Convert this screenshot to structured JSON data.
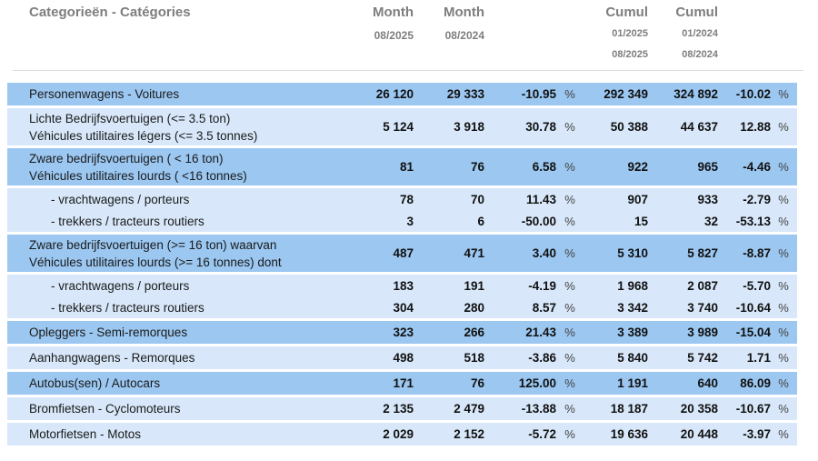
{
  "header": {
    "category": "Categorieën - Catégories",
    "month_current": {
      "title": "Month",
      "date": "08/2025"
    },
    "month_previous": {
      "title": "Month",
      "date": "08/2024"
    },
    "cumul_current": {
      "title": "Cumul",
      "date_from": "01/2025",
      "date_to": "08/2025"
    },
    "cumul_previous": {
      "title": "Cumul",
      "date_from": "01/2024",
      "date_to": "08/2024"
    }
  },
  "percent_sign": "%",
  "colors": {
    "row_medium": "#9BC7F1",
    "row_light": "#D8E8FA",
    "header_text": "#7E7E7E",
    "divider": "#DCDCDC"
  },
  "table": {
    "rows": [
      {
        "label": "Personenwagens - Voitures",
        "shade": "medium",
        "m1": "26 120",
        "m2": "29 333",
        "pct1": "-10.95",
        "cum1": "292 349",
        "cum2": "324 892",
        "pct2": "-10.02"
      },
      {
        "label": "Lichte Bedrijfsvoertuigen (<= 3.5 ton)",
        "label2": "Véhicules utilitaires légers (<= 3.5 tonnes)",
        "shade": "light",
        "m1": "5 124",
        "m2": "3 918",
        "pct1": "30.78",
        "cum1": "50 388",
        "cum2": "44 637",
        "pct2": "12.88"
      },
      {
        "label": "Zware bedrijfsvoertuigen ( < 16 ton)",
        "label2": "Véhicules utilitaires lourds ( <16 tonnes)",
        "shade": "medium",
        "m1": "81",
        "m2": "76",
        "pct1": "6.58",
        "cum1": "922",
        "cum2": "965",
        "pct2": "-4.46"
      },
      {
        "label": "- vrachtwagens / porteurs",
        "shade": "light",
        "indent": true,
        "m1": "78",
        "m2": "70",
        "pct1": "11.43",
        "cum1": "907",
        "cum2": "933",
        "pct2": "-2.79"
      },
      {
        "label": "- trekkers / tracteurs routiers",
        "shade": "light",
        "indent": true,
        "paired": true,
        "m1": "3",
        "m2": "6",
        "pct1": "-50.00",
        "cum1": "15",
        "cum2": "32",
        "pct2": "-53.13"
      },
      {
        "label": "Zware bedrijfsvoertuigen (>= 16 ton) waarvan",
        "label2": "Véhicules utilitaires lourds (>= 16 tonnes) dont",
        "shade": "medium",
        "m1": "487",
        "m2": "471",
        "pct1": "3.40",
        "cum1": "5 310",
        "cum2": "5 827",
        "pct2": "-8.87"
      },
      {
        "label": "- vrachtwagens / porteurs",
        "shade": "light",
        "indent": true,
        "m1": "183",
        "m2": "191",
        "pct1": "-4.19",
        "cum1": "1 968",
        "cum2": "2 087",
        "pct2": "-5.70"
      },
      {
        "label": "- trekkers / tracteurs routiers",
        "shade": "light",
        "indent": true,
        "paired": true,
        "m1": "304",
        "m2": "280",
        "pct1": "8.57",
        "cum1": "3 342",
        "cum2": "3 740",
        "pct2": "-10.64"
      },
      {
        "label": "Opleggers - Semi-remorques",
        "shade": "medium",
        "m1": "323",
        "m2": "266",
        "pct1": "21.43",
        "cum1": "3 389",
        "cum2": "3 989",
        "pct2": "-15.04"
      },
      {
        "label": "Aanhangwagens - Remorques",
        "shade": "light",
        "m1": "498",
        "m2": "518",
        "pct1": "-3.86",
        "cum1": "5 840",
        "cum2": "5 742",
        "pct2": "1.71"
      },
      {
        "label": "Autobus(sen) / Autocars",
        "shade": "medium",
        "m1": "171",
        "m2": "76",
        "pct1": "125.00",
        "cum1": "1 191",
        "cum2": "640",
        "pct2": "86.09"
      },
      {
        "label": "Bromfietsen - Cyclomoteurs",
        "shade": "light",
        "m1": "2 135",
        "m2": "2 479",
        "pct1": "-13.88",
        "cum1": "18 187",
        "cum2": "20 358",
        "pct2": "-10.67"
      },
      {
        "label": "Motorfietsen - Motos",
        "shade": "light",
        "m1": "2 029",
        "m2": "2 152",
        "pct1": "-5.72",
        "cum1": "19 636",
        "cum2": "20 448",
        "pct2": "-3.97"
      }
    ]
  }
}
